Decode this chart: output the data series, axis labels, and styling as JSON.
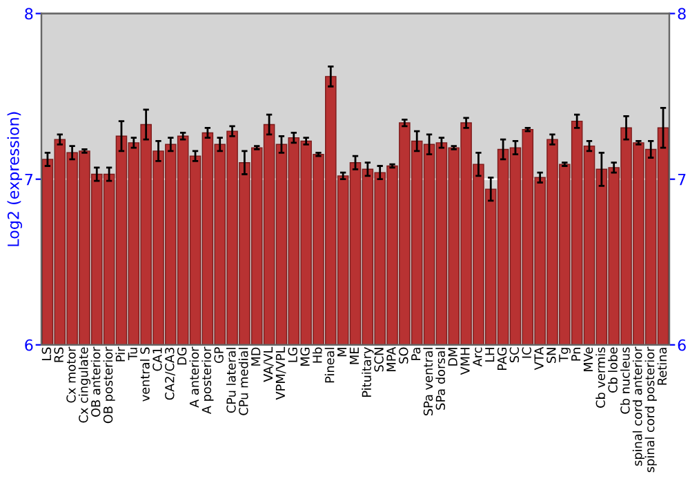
{
  "chart_data": {
    "type": "bar",
    "ylabel": "Log2 (expression)",
    "categories": [
      "LS",
      "RS",
      "Cx motor",
      "Cx cingulate",
      "OB anterior",
      "OB posterior",
      "Pir",
      "Tu",
      "ventral S",
      "CA1",
      "CA2/CA3",
      "DG",
      "A anterior",
      "A posterior",
      "GP",
      "CPu lateral",
      "CPu medial",
      "MD",
      "VA/VL",
      "VPM/VPL",
      "LG",
      "MG",
      "Hb",
      "Pineal",
      "M",
      "ME",
      "Pituitary",
      "SCN",
      "MPA",
      "SO",
      "Pa",
      "SPa ventral",
      "SPa dorsal",
      "DM",
      "VMH",
      "Arc",
      "LH",
      "PAG",
      "SC",
      "IC",
      "VTA",
      "SN",
      "Tg",
      "Pn",
      "MVe",
      "Cb vermis",
      "Cb lobe",
      "Cb nucleus",
      "spinal cord anterior",
      "spinal cord posterior",
      "Retina"
    ],
    "values": [
      7.12,
      7.24,
      7.16,
      7.17,
      7.03,
      7.03,
      7.26,
      7.22,
      7.33,
      7.17,
      7.21,
      7.26,
      7.14,
      7.28,
      7.21,
      7.29,
      7.1,
      7.19,
      7.33,
      7.21,
      7.25,
      7.23,
      7.15,
      7.62,
      7.02,
      7.1,
      7.06,
      7.04,
      7.08,
      7.34,
      7.23,
      7.21,
      7.22,
      7.19,
      7.34,
      7.09,
      6.94,
      7.18,
      7.19,
      7.3,
      7.01,
      7.24,
      7.09,
      7.35,
      7.2,
      7.06,
      7.07,
      7.31,
      7.22,
      7.18,
      7.31
    ],
    "errors": [
      0.04,
      0.03,
      0.04,
      0.01,
      0.04,
      0.04,
      0.09,
      0.03,
      0.09,
      0.06,
      0.04,
      0.02,
      0.03,
      0.03,
      0.04,
      0.03,
      0.07,
      0.01,
      0.06,
      0.05,
      0.03,
      0.02,
      0.01,
      0.06,
      0.02,
      0.04,
      0.04,
      0.04,
      0.01,
      0.02,
      0.06,
      0.06,
      0.03,
      0.01,
      0.03,
      0.07,
      0.07,
      0.06,
      0.04,
      0.01,
      0.03,
      0.03,
      0.01,
      0.04,
      0.03,
      0.1,
      0.03,
      0.07,
      0.01,
      0.05,
      0.12
    ],
    "color": "#b83232",
    "ylim": [
      6,
      8
    ],
    "yticks": [
      6,
      7,
      8
    ],
    "y2lim": [
      6,
      8
    ],
    "y2ticks": [
      6,
      7,
      8
    ],
    "grid": "y"
  }
}
